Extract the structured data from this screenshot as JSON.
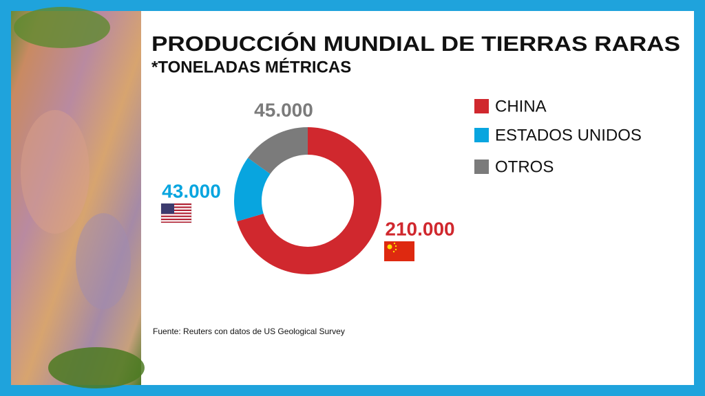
{
  "chart_data": {
    "type": "pie",
    "donut": true,
    "title": "PRODUCCIÓN MUNDIAL DE TIERRAS RARAS",
    "subtitle": "*TONELADAS MÉTRICAS",
    "categories": [
      "CHINA",
      "ESTADOS UNIDOS",
      "OTROS"
    ],
    "values": [
      210000,
      43000,
      45000
    ],
    "value_labels": [
      "210.000",
      "43.000",
      "45.000"
    ],
    "colors": [
      "#d0282e",
      "#08a5df",
      "#7b7b7b"
    ],
    "legend": "right",
    "source": "Fuente: Reuters con datos de US Geological Survey"
  }
}
